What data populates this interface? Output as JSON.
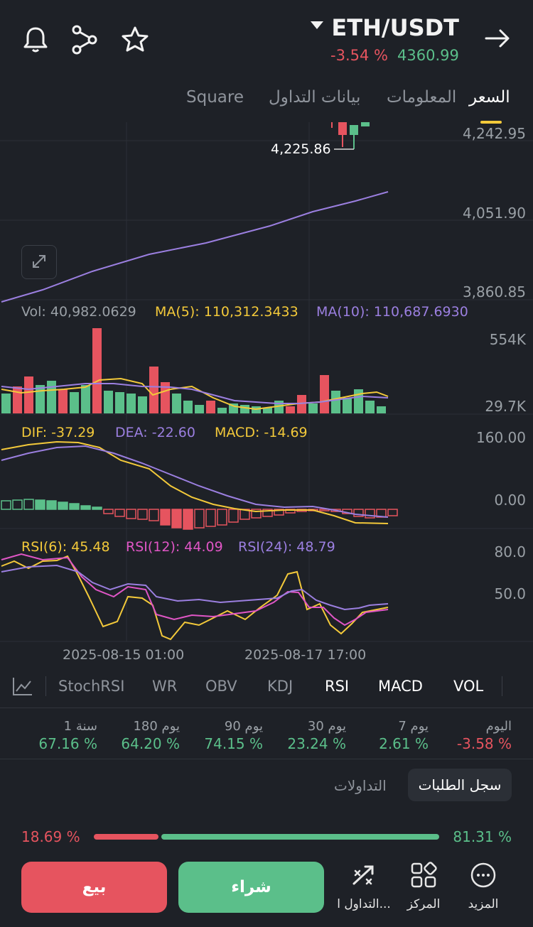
{
  "header": {
    "pair": "ETH/USDT",
    "change": "-3.54 %",
    "price": "4360.99",
    "icons": [
      "bell-icon",
      "share-icon",
      "star-icon",
      "arrow-right-icon",
      "caret-down-icon"
    ]
  },
  "tabs": [
    {
      "label": "السعر",
      "active": true
    },
    {
      "label": "المعلومات",
      "active": false
    },
    {
      "label": "بيانات التداول",
      "active": false
    },
    {
      "label": "Square",
      "active": false
    }
  ],
  "price_chart": {
    "axis": [
      "4,242.95",
      "4,051.90",
      "3,860.85"
    ],
    "low_marker": "4,225.86"
  },
  "volume": {
    "vol": "Vol: 40,982.0629",
    "ma5": "MA(5): 110,312.3433",
    "ma10": "MA(10): 110,687.6930",
    "axis": [
      "554K",
      "29.7K"
    ]
  },
  "macd": {
    "dif": "DIF: -37.29",
    "dea": "DEA: -22.60",
    "macd": "MACD: -14.69",
    "axis": [
      "160.00",
      "0.00"
    ]
  },
  "rsi": {
    "rsi6": "RSI(6): 45.48",
    "rsi12": "RSI(12): 44.09",
    "rsi24": "RSI(24): 48.79",
    "axis": [
      "80.0",
      "50.0"
    ]
  },
  "dates": [
    "2025-08-15 01:00",
    "2025-08-17 17:00"
  ],
  "indicator_tabs": [
    "StochRSI",
    "WR",
    "OBV",
    "KDJ",
    "RSI",
    "MACD",
    "VOL"
  ],
  "performance": [
    {
      "label": "اليوم",
      "value": "-3.58 %",
      "color": "#e6545f"
    },
    {
      "label": "7 يوم",
      "value": "2.61 %",
      "color": "#5bbf8a"
    },
    {
      "label": "30 يوم",
      "value": "23.24 %",
      "color": "#5bbf8a"
    },
    {
      "label": "90 يوم",
      "value": "74.15 %",
      "color": "#5bbf8a"
    },
    {
      "label": "180 يوم",
      "value": "64.20 %",
      "color": "#5bbf8a"
    },
    {
      "label": "1 سنة",
      "value": "67.16 %",
      "color": "#5bbf8a"
    }
  ],
  "order_tabs": {
    "book": "سجل الطلبات",
    "trades": "التداولات"
  },
  "ratio": {
    "sell": "18.69 %",
    "buy": "81.31 %",
    "buy_fraction": 0.8131
  },
  "actions": {
    "sell": "بيع",
    "buy": "شراء",
    "trade": "التداول ا...",
    "center": "المركز",
    "more": "المزيد"
  },
  "colors": {
    "up": "#5bbf8a",
    "down": "#e6545f",
    "accent": "#f3c93a",
    "ma10": "#9b7fe0"
  }
}
